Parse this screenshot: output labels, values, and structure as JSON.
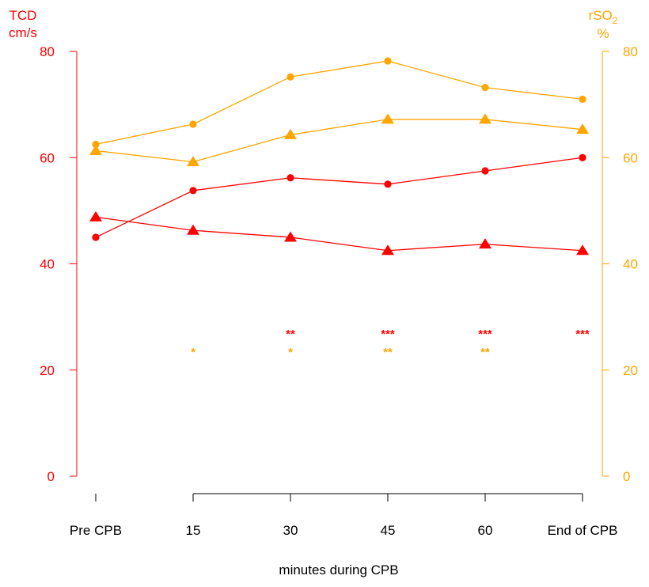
{
  "chart_data": {
    "type": "line",
    "xlabel": "minutes during CPB",
    "categories": [
      "Pre CPB",
      "15",
      "30",
      "45",
      "60",
      "End of CPB"
    ],
    "left_axis": {
      "label_line1": "TCD",
      "label_line2": "cm/s",
      "range": [
        0,
        80
      ],
      "ticks": [
        0,
        20,
        40,
        60,
        80
      ],
      "color": "#ff0000"
    },
    "right_axis": {
      "label_main": "rSO",
      "label_sub": "2",
      "label_line2": "%",
      "range": [
        0,
        80
      ],
      "ticks": [
        0,
        20,
        40,
        60,
        80
      ],
      "color": "#ffa500"
    },
    "series": [
      {
        "axis": "left",
        "marker": "circle",
        "color": "#ff0000",
        "values": [
          45,
          53.8,
          56.2,
          55,
          57.5,
          60
        ]
      },
      {
        "axis": "left",
        "marker": "triangle",
        "color": "#ff0000",
        "values": [
          48.8,
          46.3,
          45,
          42.5,
          43.7,
          42.5
        ]
      },
      {
        "axis": "right",
        "marker": "circle",
        "color": "#ffa500",
        "values": [
          62.5,
          66.3,
          75.2,
          78.2,
          73.2,
          71
        ]
      },
      {
        "axis": "right",
        "marker": "triangle",
        "color": "#ffa500",
        "values": [
          61.3,
          59.2,
          64.3,
          67.2,
          67.2,
          65.3
        ]
      }
    ],
    "significance": [
      {
        "color": "#ff0000",
        "labels": [
          "",
          "",
          "**",
          "***",
          "***",
          "***"
        ]
      },
      {
        "color": "#ffa500",
        "labels": [
          "",
          "*",
          "*",
          "**",
          "**",
          ""
        ]
      }
    ]
  }
}
